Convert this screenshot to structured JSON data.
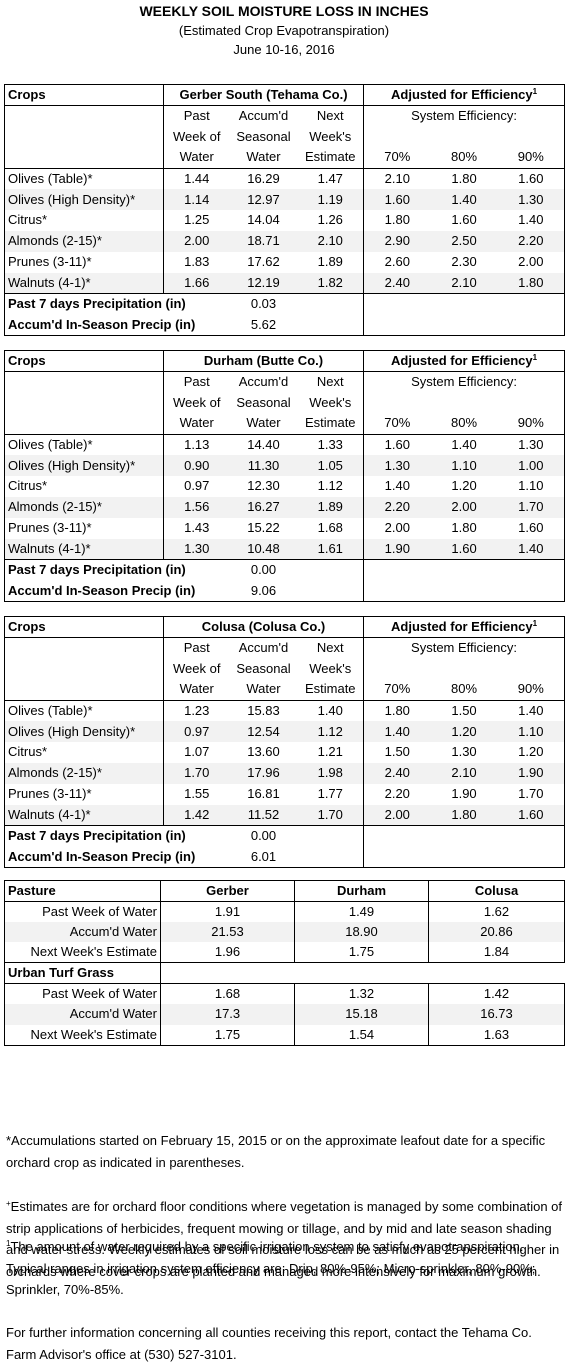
{
  "header": {
    "title": "WEEKLY SOIL MOISTURE LOSS IN INCHES",
    "subtitle": "(Estimated Crop Evapotranspiration)",
    "dates": "June 10-16, 2016"
  },
  "common": {
    "crops_label": "Crops",
    "adjusted_label": "Adjusted for Efficiency",
    "adjusted_sup": "1",
    "system_eff_label": "System Efficiency:",
    "col_past": [
      "Past",
      "Week of",
      "Water"
    ],
    "col_accum": [
      "Accum'd",
      "Seasonal",
      "Water"
    ],
    "col_next": [
      "Next",
      "Week's",
      "Estimate"
    ],
    "eff_cols": [
      "70%",
      "80%",
      "90%"
    ],
    "precip7_label": "Past 7 days Precipitation (in)",
    "precip_season_label": "Accum'd In-Season Precip (in)"
  },
  "sections": [
    {
      "location": "Gerber South (Tehama Co.)",
      "rows": [
        {
          "crop": "Olives (Table)*",
          "past": "1.44",
          "accum": "16.29",
          "next": "1.47",
          "e70": "2.10",
          "e80": "1.80",
          "e90": "1.60"
        },
        {
          "crop": "Olives (High Density)*",
          "past": "1.14",
          "accum": "12.97",
          "next": "1.19",
          "e70": "1.60",
          "e80": "1.40",
          "e90": "1.30"
        },
        {
          "crop": "Citrus*",
          "past": "1.25",
          "accum": "14.04",
          "next": "1.26",
          "e70": "1.80",
          "e80": "1.60",
          "e90": "1.40"
        },
        {
          "crop": "Almonds (2-15)*",
          "past": "2.00",
          "accum": "18.71",
          "next": "2.10",
          "e70": "2.90",
          "e80": "2.50",
          "e90": "2.20"
        },
        {
          "crop": "Prunes (3-11)*",
          "past": "1.83",
          "accum": "17.62",
          "next": "1.89",
          "e70": "2.60",
          "e80": "2.30",
          "e90": "2.00"
        },
        {
          "crop": "Walnuts (4-1)*",
          "past": "1.66",
          "accum": "12.19",
          "next": "1.82",
          "e70": "2.40",
          "e80": "2.10",
          "e90": "1.80"
        }
      ],
      "precip7": "0.03",
      "precip_season": "5.62"
    },
    {
      "location": "Durham (Butte Co.)",
      "rows": [
        {
          "crop": "Olives (Table)*",
          "past": "1.13",
          "accum": "14.40",
          "next": "1.33",
          "e70": "1.60",
          "e80": "1.40",
          "e90": "1.30"
        },
        {
          "crop": "Olives (High Density)*",
          "past": "0.90",
          "accum": "11.30",
          "next": "1.05",
          "e70": "1.30",
          "e80": "1.10",
          "e90": "1.00"
        },
        {
          "crop": "Citrus*",
          "past": "0.97",
          "accum": "12.30",
          "next": "1.12",
          "e70": "1.40",
          "e80": "1.20",
          "e90": "1.10"
        },
        {
          "crop": "Almonds (2-15)*",
          "past": "1.56",
          "accum": "16.27",
          "next": "1.89",
          "e70": "2.20",
          "e80": "2.00",
          "e90": "1.70"
        },
        {
          "crop": "Prunes (3-11)*",
          "past": "1.43",
          "accum": "15.22",
          "next": "1.68",
          "e70": "2.00",
          "e80": "1.80",
          "e90": "1.60"
        },
        {
          "crop": "Walnuts (4-1)*",
          "past": "1.30",
          "accum": "10.48",
          "next": "1.61",
          "e70": "1.90",
          "e80": "1.60",
          "e90": "1.40"
        }
      ],
      "precip7": "0.00",
      "precip_season": "9.06"
    },
    {
      "location": "Colusa (Colusa Co.)",
      "rows": [
        {
          "crop": "Olives (Table)*",
          "past": "1.23",
          "accum": "15.83",
          "next": "1.40",
          "e70": "1.80",
          "e80": "1.50",
          "e90": "1.40"
        },
        {
          "crop": "Olives (High Density)*",
          "past": "0.97",
          "accum": "12.54",
          "next": "1.12",
          "e70": "1.40",
          "e80": "1.20",
          "e90": "1.10"
        },
        {
          "crop": "Citrus*",
          "past": "1.07",
          "accum": "13.60",
          "next": "1.21",
          "e70": "1.50",
          "e80": "1.30",
          "e90": "1.20"
        },
        {
          "crop": "Almonds (2-15)*",
          "past": "1.70",
          "accum": "17.96",
          "next": "1.98",
          "e70": "2.40",
          "e80": "2.10",
          "e90": "1.90"
        },
        {
          "crop": "Prunes (3-11)*",
          "past": "1.55",
          "accum": "16.81",
          "next": "1.77",
          "e70": "2.20",
          "e80": "1.90",
          "e90": "1.70"
        },
        {
          "crop": "Walnuts (4-1)*",
          "past": "1.42",
          "accum": "11.52",
          "next": "1.70",
          "e70": "2.00",
          "e80": "1.80",
          "e90": "1.60"
        }
      ],
      "precip7": "0.00",
      "precip_season": "6.01"
    }
  ],
  "pasture": {
    "label": "Pasture",
    "cols": [
      "Gerber",
      "Durham",
      "Colusa"
    ],
    "rows": [
      {
        "label": "Past Week of Water",
        "vals": [
          "1.91",
          "1.49",
          "1.62"
        ]
      },
      {
        "label": "Accum'd Water",
        "vals": [
          "21.53",
          "18.90",
          "20.86"
        ]
      },
      {
        "label": "Next Week's Estimate",
        "vals": [
          "1.96",
          "1.75",
          "1.84"
        ]
      }
    ]
  },
  "turf": {
    "label": "Urban Turf Grass",
    "rows": [
      {
        "label": "Past Week of Water",
        "vals": [
          "1.68",
          "1.32",
          "1.42"
        ]
      },
      {
        "label": "Accum'd Water",
        "vals": [
          "17.3",
          "15.18",
          "16.73"
        ]
      },
      {
        "label": "Next Week's Estimate",
        "vals": [
          "1.75",
          "1.54",
          "1.63"
        ]
      }
    ]
  },
  "notes": {
    "n1": "*Accumulations started on February 15, 2015 or on the approximate leafout date for a specific orchard crop as indicated in parentheses.",
    "n2_sup": "+",
    "n2": "Estimates are for orchard floor conditions where vegetation is managed by some combination of strip applications of herbicides, frequent mowing or tillage, and by mid and late season shading and water stress.  Weekly estimates of soil moisture loss can be as much as 25 percent higher in orchards where cover crops are planted and managed more intensively for maximum growth.",
    "n3_sup": "1",
    "n3": "The amount of water required by a specific irrigation system to satisfy evapotranspiration. Typical ranges in irrigation system efficiency are: Drip, 80%-95%; Micro-sprinkler, 80%-90%; Sprinkler, 70%-85%.",
    "n4": "For further information concerning all counties receiving this report, contact the Tehama Co. Farm Advisor's office at (530) 527-3101."
  }
}
